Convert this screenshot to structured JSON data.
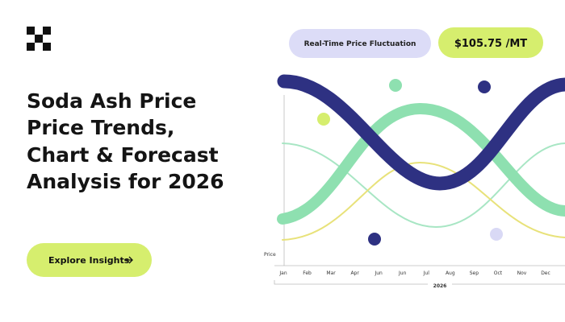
{
  "headline": [
    "Soda Ash Price",
    "Price Trends,",
    "Chart & Forecast",
    "Analysis for 2026"
  ],
  "button": "Explore Insights",
  "badge": "Real-Time Price Fluctuation",
  "price": "$105.75 /MT",
  "chart": {
    "y_label": "Price",
    "months": [
      "Jan",
      "Feb",
      "Mar",
      "Apr",
      "Jun",
      "Jun",
      "Jul",
      "Aug",
      "Sep",
      "Oct",
      "Nov",
      "Dec"
    ],
    "year": "2026"
  }
}
